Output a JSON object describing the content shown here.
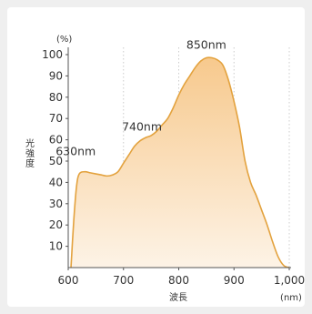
{
  "chart_data": {
    "type": "area",
    "title": "",
    "xlabel": "波長",
    "ylabel": "光強度",
    "xunit": "(nm)",
    "yunit": "(%)",
    "xlim": [
      600,
      1000
    ],
    "ylim": [
      0,
      100
    ],
    "xticks": [
      600,
      700,
      800,
      900,
      1000
    ],
    "xtick_labels": [
      "600",
      "700",
      "800",
      "900",
      "1,000"
    ],
    "yticks": [
      10,
      20,
      30,
      40,
      50,
      60,
      70,
      80,
      90,
      100
    ],
    "grid": {
      "vertical": true,
      "horizontal": false
    },
    "colors": {
      "line": "#e3a23e",
      "fill_top": "#f7c98d",
      "fill_bottom": "#fdf3e6",
      "grid": "#cccccc",
      "axis": "#555555"
    },
    "series": [
      {
        "x": [
          605,
          610,
          615,
          620,
          630,
          640,
          650,
          660,
          670,
          680,
          690,
          700,
          710,
          720,
          730,
          740,
          750,
          760,
          770,
          780,
          790,
          800,
          810,
          820,
          830,
          840,
          850,
          860,
          870,
          880,
          890,
          900,
          910,
          920,
          930,
          940,
          950,
          960,
          970,
          980,
          990,
          1000
        ],
        "y": [
          0,
          22,
          38,
          44,
          45,
          44.5,
          44,
          43.5,
          43,
          43.5,
          45,
          49,
          53,
          57,
          59.5,
          61,
          62,
          64,
          67,
          70,
          75,
          81,
          86,
          90,
          94,
          97,
          98.5,
          98.5,
          97.5,
          95,
          88,
          78,
          66,
          50,
          40,
          34,
          27,
          20,
          12,
          5,
          1,
          0
        ]
      }
    ],
    "annotations": [
      {
        "text": "630nm",
        "x": 630,
        "y": 45
      },
      {
        "text": "740nm",
        "x": 740,
        "y": 61
      },
      {
        "text": "850nm",
        "x": 850,
        "y": 98.5
      }
    ]
  }
}
